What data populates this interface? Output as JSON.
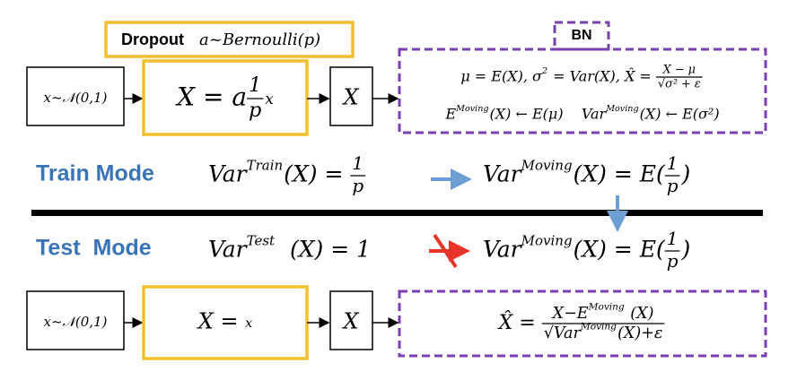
{
  "top": {
    "input": [
      {
        "text": "x~𝒩(0,1)"
      }
    ],
    "dropout_title": {
      "word": "Dropout",
      "formula": [
        {
          "text": "a~Bernoulli(p)"
        }
      ]
    },
    "dropout_formula": [
      {
        "text": "X = a"
      },
      {
        "num": [
          {
            "text": "1"
          }
        ],
        "den": [
          {
            "text": "p"
          }
        ]
      },
      {
        "text": "x",
        "style": "small"
      }
    ],
    "output": [
      {
        "text": "X"
      }
    ],
    "bn_title": "BN",
    "bn_line1": [
      {
        "text": "μ = E(X), σ"
      },
      {
        "text": "2",
        "style": "sup"
      },
      {
        "text": " = Var(X), X̂ = "
      },
      {
        "num": [
          {
            "text": "X − μ"
          }
        ],
        "den": [
          {
            "text": "√σ² + ε"
          }
        ]
      }
    ],
    "bn_line2": [
      {
        "text": "E"
      },
      {
        "text": "Moving",
        "style": "sup"
      },
      {
        "text": "(X) ← E(μ)    Var"
      },
      {
        "text": "Moving",
        "style": "sup"
      },
      {
        "text": "(X) ← E(σ²)"
      }
    ]
  },
  "train_mode": {
    "label": "Train Mode",
    "variance": [
      {
        "text": "Var"
      },
      {
        "text": "Train",
        "style": "sup"
      },
      {
        "text": "(X) = "
      },
      {
        "num": [
          {
            "text": "1"
          }
        ],
        "den": [
          {
            "text": "p"
          }
        ]
      }
    ],
    "moving": [
      {
        "text": "Var"
      },
      {
        "text": "Moving",
        "style": "sup"
      },
      {
        "text": "(X) = E("
      },
      {
        "num": [
          {
            "text": "1"
          }
        ],
        "den": [
          {
            "text": "p"
          }
        ]
      },
      {
        "text": ")"
      }
    ]
  },
  "test_mode": {
    "label": "Test  Mode",
    "variance": [
      {
        "text": "Var"
      },
      {
        "text": "Test",
        "style": "sup"
      },
      {
        "text": "  (X) = 1"
      }
    ],
    "moving": [
      {
        "text": "Var"
      },
      {
        "text": "Moving",
        "style": "sup"
      },
      {
        "text": "(X) = E("
      },
      {
        "num": [
          {
            "text": "1"
          }
        ],
        "den": [
          {
            "text": "p"
          }
        ]
      },
      {
        "text": ")"
      }
    ]
  },
  "bottom": {
    "input": [
      {
        "text": "x~𝒩(0,1)"
      }
    ],
    "dropout_formula": [
      {
        "text": "X = "
      },
      {
        "text": "x",
        "style": "small"
      }
    ],
    "output": [
      {
        "text": "X"
      }
    ],
    "bn_formula": [
      {
        "text": "X̂ = "
      },
      {
        "num": [
          {
            "text": "X−E"
          },
          {
            "text": "Moving",
            "style": "sup"
          },
          {
            "text": " (X)"
          }
        ],
        "den": [
          {
            "text": "√Var"
          },
          {
            "text": "Moving",
            "style": "sup"
          },
          {
            "text": "(X)+ε"
          }
        ]
      }
    ]
  }
}
